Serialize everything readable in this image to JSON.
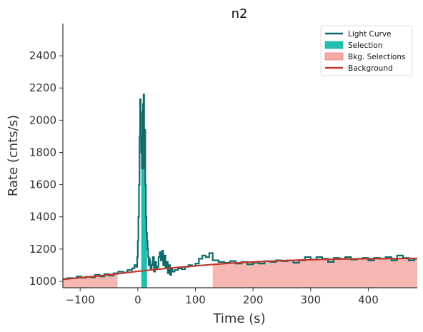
{
  "chart_data": {
    "type": "line",
    "title": "n2",
    "xlabel": "Time (s)",
    "ylabel": "Rate (cnts/s)",
    "xlim": [
      -130,
      485
    ],
    "ylim": [
      960,
      2600
    ],
    "xticks": [
      -100,
      0,
      100,
      200,
      300,
      400
    ],
    "yticks": [
      1000,
      1200,
      1400,
      1600,
      1800,
      2000,
      2200,
      2400
    ],
    "grid": false,
    "legend_position": "top-right",
    "legend": [
      "Light Curve",
      "Selection",
      "Bkg. Selections",
      "Background"
    ],
    "colors": {
      "light_curve": "#0f6b6b",
      "selection": "#21bdb0",
      "bkg_selection": "#f4aaa5",
      "background": "#c0392b"
    },
    "selection": {
      "x": [
        6,
        16
      ]
    },
    "bkg_selections": [
      {
        "x": [
          -130,
          -35
        ]
      },
      {
        "x": [
          130,
          485
        ]
      }
    ],
    "background_fit": {
      "x": [
        -130,
        -50,
        0,
        50,
        100,
        150,
        200,
        250,
        300,
        350,
        400,
        485
      ],
      "y": [
        1012,
        1040,
        1062,
        1080,
        1096,
        1110,
        1120,
        1128,
        1134,
        1138,
        1140,
        1142
      ]
    },
    "light_curve": {
      "x": [
        -130,
        -122,
        -114,
        -106,
        -98,
        -90,
        -82,
        -74,
        -66,
        -58,
        -50,
        -42,
        -34,
        -26,
        -18,
        -10,
        -6,
        -3,
        -1,
        0,
        1,
        2,
        3,
        4,
        5,
        6,
        7,
        8,
        9,
        10,
        11,
        12,
        13,
        14,
        15,
        16,
        17,
        18,
        19,
        20,
        21,
        22,
        24,
        26,
        28,
        30,
        32,
        34,
        36,
        38,
        40,
        42,
        44,
        46,
        48,
        50,
        52,
        54,
        56,
        58,
        60,
        64,
        70,
        76,
        82,
        88,
        94,
        100,
        106,
        112,
        118,
        124,
        130,
        140,
        150,
        160,
        170,
        180,
        190,
        200,
        210,
        220,
        230,
        240,
        250,
        260,
        270,
        280,
        290,
        300,
        310,
        320,
        330,
        340,
        350,
        360,
        370,
        380,
        390,
        400,
        410,
        420,
        430,
        440,
        450,
        460,
        470,
        480
      ],
      "y": [
        1015,
        1020,
        1018,
        1030,
        1022,
        1028,
        1025,
        1040,
        1030,
        1045,
        1035,
        1050,
        1060,
        1055,
        1070,
        1080,
        1100,
        1090,
        1150,
        1250,
        1400,
        1600,
        1900,
        2130,
        2050,
        1800,
        1700,
        1900,
        2100,
        2160,
        1700,
        1940,
        1600,
        1400,
        1300,
        1250,
        1200,
        1150,
        1100,
        1140,
        1120,
        1080,
        1100,
        1150,
        1060,
        1120,
        1080,
        1090,
        1150,
        1180,
        1130,
        1190,
        1100,
        1160,
        1080,
        1120,
        1050,
        1100,
        1040,
        1080,
        1060,
        1070,
        1080,
        1075,
        1090,
        1100,
        1095,
        1110,
        1140,
        1160,
        1150,
        1175,
        1130,
        1120,
        1115,
        1125,
        1110,
        1120,
        1105,
        1115,
        1110,
        1125,
        1120,
        1130,
        1125,
        1130,
        1115,
        1130,
        1150,
        1135,
        1150,
        1140,
        1120,
        1145,
        1140,
        1150,
        1135,
        1140,
        1145,
        1130,
        1145,
        1140,
        1150,
        1130,
        1160,
        1145,
        1130,
        1140
      ]
    }
  }
}
